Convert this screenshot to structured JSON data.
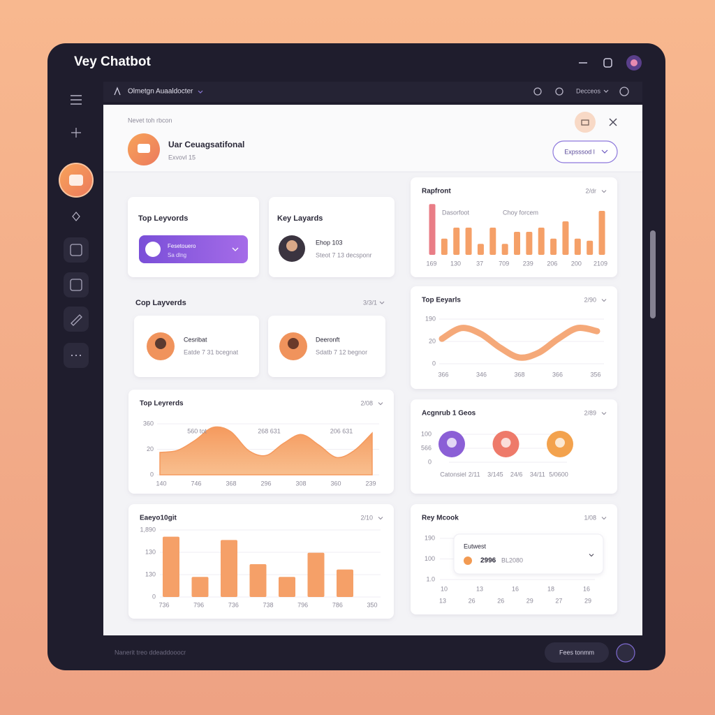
{
  "app": {
    "title": "Vey Chatbot"
  },
  "topbar": {
    "assistant": "Olmetgn Auaaldocter",
    "menu": "Decceos"
  },
  "panel": {
    "breadcrumb": "Nevet toh rbcon",
    "title": "Uar Ceuagsatifonal",
    "subtitle": "Exvovl 15",
    "button": "Expsssod l"
  },
  "cards": [
    {
      "title": "Top Leyvords",
      "pill_title": "Fesetouero",
      "pill_subtitle": "Sa dlng"
    },
    {
      "title": "Key Layards",
      "name": "Ehop 103",
      "detail": "Steot 7 13 decsponr"
    }
  ],
  "people_section": {
    "title": "Cop Layverds",
    "filter": "3/3/1",
    "people": [
      {
        "name": "Cesribat",
        "detail": "Eatde 7 31 bcegnat"
      },
      {
        "name": "Deeronft",
        "detail": "Sdatb 7 12 begnor"
      }
    ]
  },
  "charts": [
    {
      "type": "bar",
      "title": "Rapfront",
      "filter": "2/dr",
      "legend": [
        "Dasorfoot",
        "Choy forcem"
      ],
      "values": [
        97,
        31,
        52,
        52,
        21,
        52,
        21,
        44,
        44,
        52,
        31,
        64,
        31,
        27,
        84
      ],
      "ylim": [
        0,
        100
      ],
      "color": "#f5a068",
      "accent_color": "#e97d86",
      "x_labels": [
        "169",
        "130",
        "37",
        "709",
        "239",
        "206",
        "200",
        "2109"
      ]
    },
    {
      "type": "line",
      "title": "Top Eeyarls",
      "filter": "2/90",
      "values": [
        56,
        80,
        67,
        36,
        14,
        25,
        56,
        80,
        73
      ],
      "ylim": [
        0,
        100
      ],
      "color": "#f4a06a",
      "y_labels": [
        "190",
        "20",
        "0"
      ],
      "x_labels": [
        "366",
        "346",
        "368",
        "366",
        "356"
      ]
    },
    {
      "type": "area",
      "title": "Top Leyrerds",
      "filter": "2/08",
      "values": [
        44,
        48,
        68,
        93,
        85,
        48,
        38,
        62,
        79,
        58,
        34,
        48,
        82
      ],
      "ylim": [
        0,
        100
      ],
      "color": "#f59a5e",
      "y_labels": [
        "360",
        "20",
        "0"
      ],
      "x_labels": [
        "140",
        "746",
        "368",
        "296",
        "308",
        "360",
        "239"
      ],
      "annotations": [
        "560 tot",
        "268 631",
        "206 631"
      ]
    },
    {
      "type": "avatars",
      "title": "Acgnrub 1 Geos",
      "filter": "2/89",
      "y_labels": [
        "100",
        "566",
        "0"
      ],
      "x_labels": [
        "Catonsiel",
        "2/11",
        "3/145",
        "24/6",
        "34/11",
        "5/0600"
      ],
      "colors": [
        "#8b5fd6",
        "#ee7a6a",
        "#f3a24d"
      ]
    },
    {
      "type": "bar",
      "title": "Eaeyo10git",
      "filter": "2/10",
      "values": [
        90,
        30,
        85,
        49,
        30,
        66,
        41
      ],
      "ylim": [
        0,
        100
      ],
      "color": "#f5a068",
      "y_labels": [
        "1,890",
        "130",
        "130",
        "0"
      ],
      "x_labels": [
        "736",
        "796",
        "736",
        "738",
        "796",
        "786",
        "350"
      ]
    },
    {
      "type": "tooltip",
      "title": "Rey Mcook",
      "filter": "1/08",
      "y_labels": [
        "190",
        "100",
        "1.0"
      ],
      "x_labels": [
        "10",
        "13",
        "16",
        "18",
        "16"
      ],
      "x_labels_2": [
        "13",
        "26",
        "26",
        "29",
        "27",
        "29"
      ],
      "tooltip_title": "Eutwest",
      "tooltip_value": "2996",
      "tooltip_detail": "BL2080"
    }
  ],
  "footer": {
    "note": "Nanerit treo ddeaddooocr",
    "button": "Fees tonmm"
  }
}
